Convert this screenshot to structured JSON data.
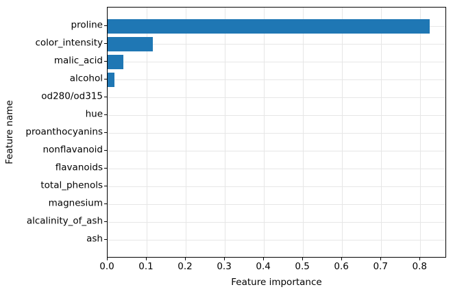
{
  "figure": {
    "background_color": "#ffffff"
  },
  "chart_data": {
    "type": "bar",
    "orientation": "horizontal",
    "title": "",
    "xlabel": "Feature importance",
    "ylabel": "Feature name",
    "categories": [
      "proline",
      "color_intensity",
      "malic_acid",
      "alcohol",
      "od280/od315",
      "hue",
      "proanthocyanins",
      "nonflavanoid",
      "flavanoids",
      "total_phenols",
      "magnesium",
      "alcalinity_of_ash",
      "ash"
    ],
    "values": [
      0.825,
      0.116,
      0.041,
      0.018,
      0,
      0,
      0,
      0,
      0,
      0,
      0,
      0,
      0
    ],
    "xticks": [
      0.0,
      0.1,
      0.2,
      0.3,
      0.4,
      0.5,
      0.6,
      0.7,
      0.8
    ],
    "xtick_labels": [
      "0.0",
      "0.1",
      "0.2",
      "0.3",
      "0.4",
      "0.5",
      "0.6",
      "0.7",
      "0.8"
    ],
    "xlim": [
      0,
      0.868
    ],
    "grid": true,
    "legend": false,
    "bar_color": "#1f77b4",
    "grid_color": "#e6e6e6",
    "axis_color": "#000000",
    "text_color": "#000000"
  }
}
